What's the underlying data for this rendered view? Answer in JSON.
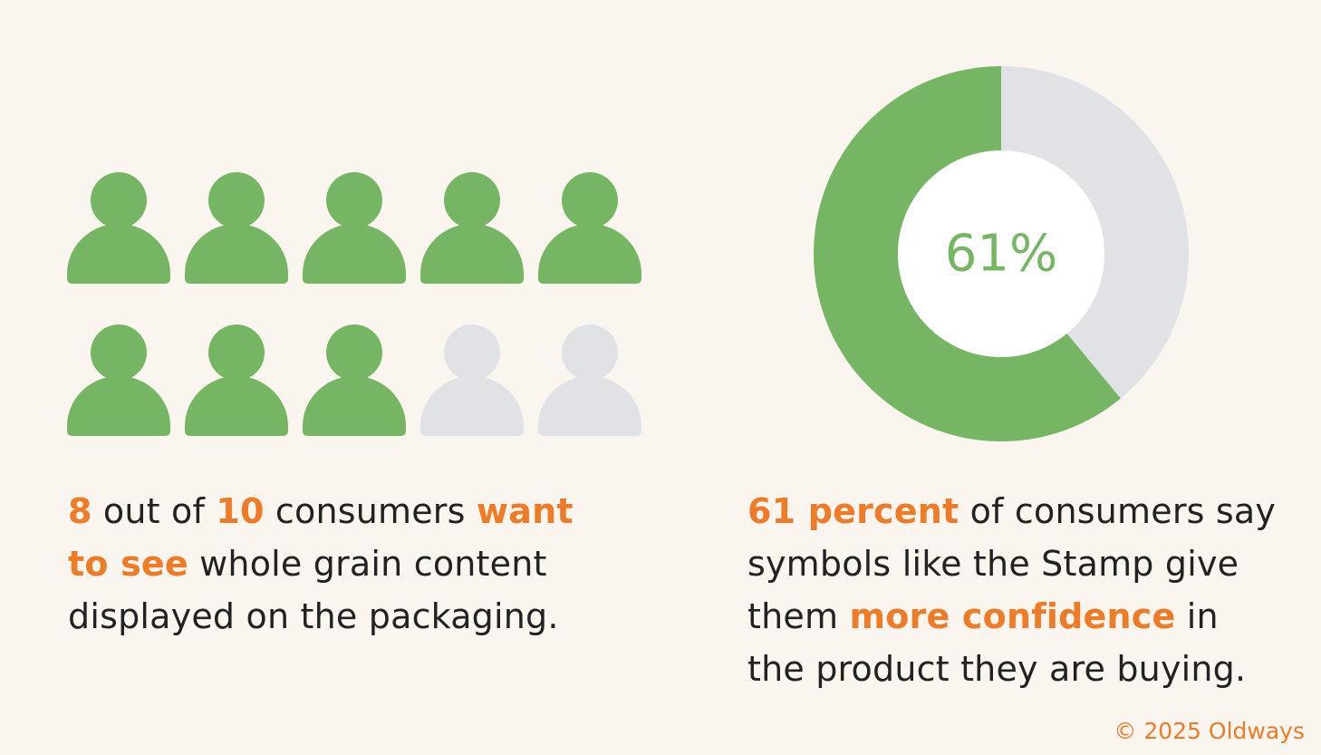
{
  "chart_data": [
    {
      "type": "pictogram",
      "values": [
        8,
        2
      ],
      "colors": [
        "#76b564",
        "#e1e2e5"
      ]
    },
    {
      "type": "pie",
      "donut": true,
      "values": [
        61,
        39
      ],
      "colors": [
        "#76b564",
        "#e1e2e5"
      ],
      "center_label": "61%"
    }
  ],
  "captions": [
    [
      {
        "text": "8",
        "emphasis": true
      },
      {
        "text": " out of ",
        "emphasis": false
      },
      {
        "text": "10",
        "emphasis": true
      },
      {
        "text": " consumers ",
        "emphasis": false
      },
      {
        "text": "want to see",
        "emphasis": true
      },
      {
        "text": " whole grain content displayed on the packaging.",
        "emphasis": false
      }
    ],
    [
      {
        "text": "61 percent",
        "emphasis": true
      },
      {
        "text": " of consumers say symbols like the Stamp give them ",
        "emphasis": false
      },
      {
        "text": "more confidence",
        "emphasis": true
      },
      {
        "text": " in the product they are buying.",
        "emphasis": false
      }
    ]
  ],
  "footer": "© 2025 Oldways"
}
